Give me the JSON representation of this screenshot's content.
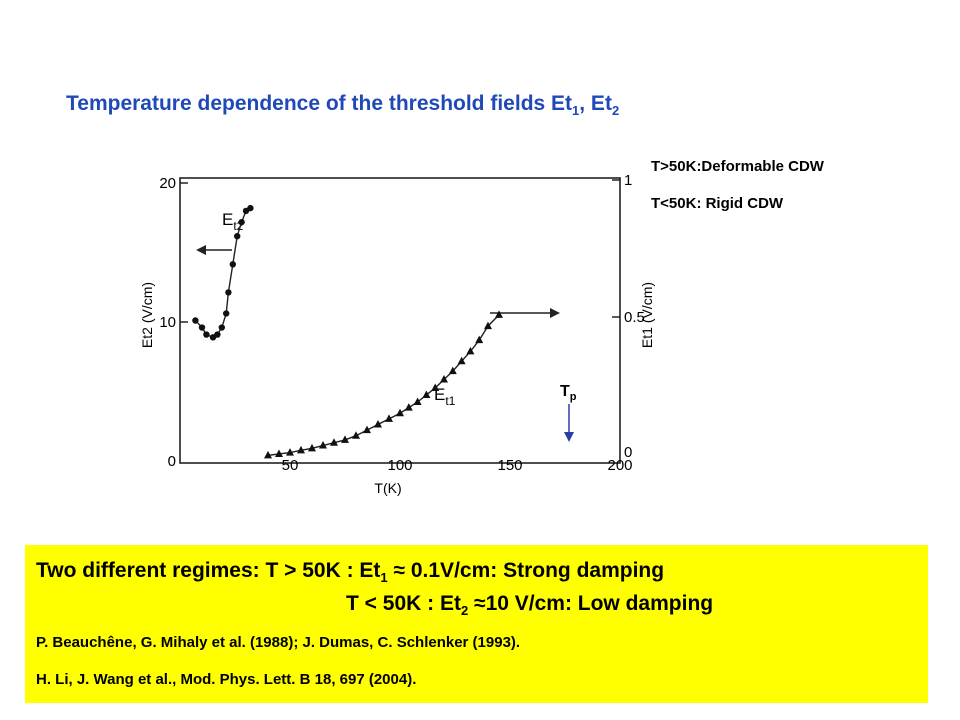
{
  "slide": {
    "title_main": "Temperature dependence of the threshold fields Et",
    "title_sub1": "1",
    "title_sep": ", Et",
    "title_sub2": "2",
    "note1": "T>50K:Deformable CDW",
    "note2": "T<50K: Rigid CDW"
  },
  "chart_data": {
    "type": "scatter",
    "x": {
      "label": "T(K)",
      "ticks": [
        "50",
        "100",
        "150",
        "200"
      ],
      "range": [
        0,
        200
      ]
    },
    "y_left": {
      "label": "Et2 (V/cm)",
      "ticks": [
        "0",
        "10",
        "20"
      ],
      "range": [
        0,
        20
      ]
    },
    "y_right": {
      "label": "Et1 (V/cm)",
      "ticks": [
        "0",
        "0.5",
        "1"
      ],
      "range": [
        0,
        1
      ]
    },
    "series": [
      {
        "name": "Et2",
        "axis": "left",
        "marker": "circle",
        "x": [
          7,
          10,
          12,
          15,
          17,
          19,
          21,
          22,
          24,
          26,
          28,
          30,
          32
        ],
        "y": [
          10,
          9.5,
          9,
          8.8,
          9,
          9.5,
          10.5,
          12,
          14,
          16,
          17,
          17.8,
          18
        ]
      },
      {
        "name": "Et1",
        "axis": "right",
        "marker": "triangle",
        "x": [
          40,
          45,
          50,
          55,
          60,
          65,
          70,
          75,
          80,
          85,
          90,
          95,
          100,
          104,
          108,
          112,
          116,
          120,
          124,
          128,
          132,
          136,
          140,
          145
        ],
        "y": [
          0.02,
          0.025,
          0.03,
          0.038,
          0.045,
          0.055,
          0.065,
          0.075,
          0.09,
          0.11,
          0.13,
          0.15,
          0.17,
          0.19,
          0.21,
          0.235,
          0.26,
          0.29,
          0.32,
          0.355,
          0.39,
          0.43,
          0.48,
          0.52
        ]
      }
    ],
    "annotations": {
      "et2_label": "E",
      "et2_sub": "t2",
      "et1_label": "E",
      "et1_sub": "t1",
      "tp_label": "T",
      "tp_sub": "p"
    },
    "grid": false
  },
  "box": {
    "line1_lead": "Two different regimes:    T > 50K : Et",
    "line1_sub": "1",
    "line1_tail": " ≈ 0.1V/cm: Strong damping",
    "line2_lead": "T < 50K :  Et",
    "line2_sub": "2",
    "line2_tail": " ≈10 V/cm: Low damping",
    "ref1": "P. Beauchêne, G. Mihaly et al. (1988); J. Dumas, C. Schlenker (1993).",
    "ref2": "H. Li, J. Wang et al.,  Mod. Phys. Lett. B 18, 697 (2004)."
  }
}
